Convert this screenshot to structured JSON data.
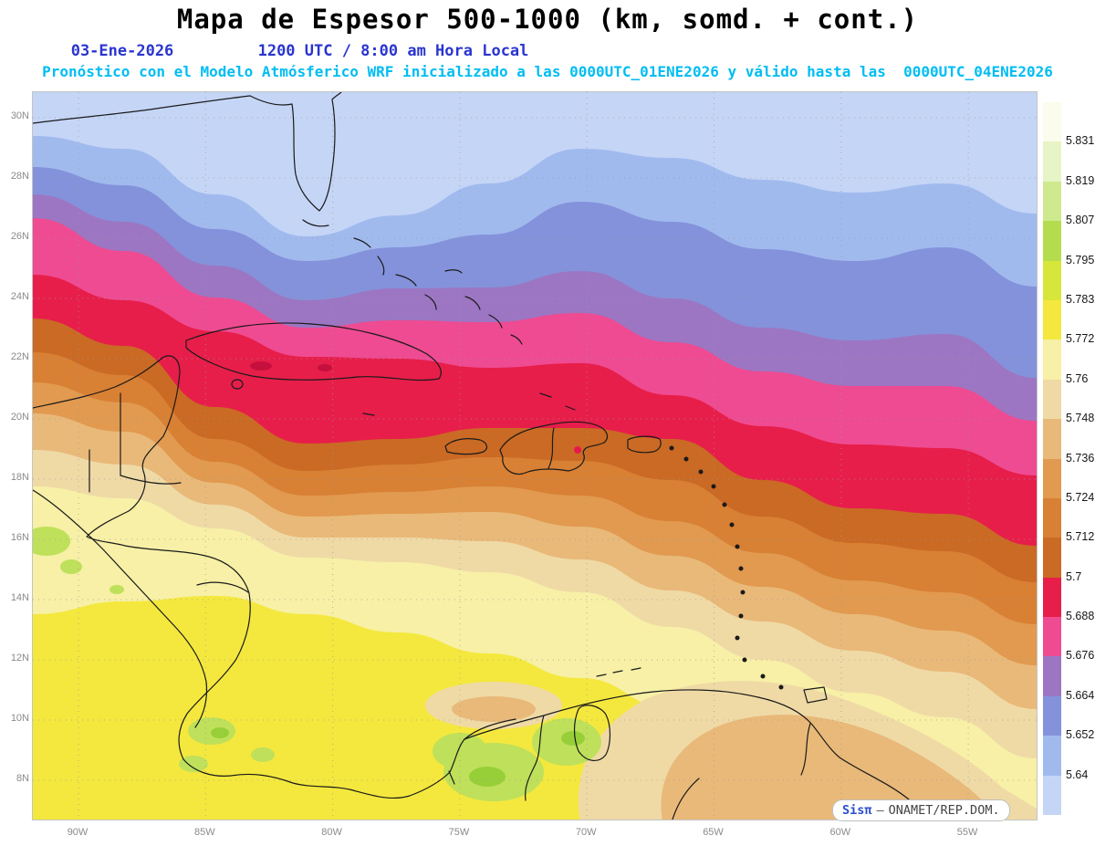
{
  "header": {
    "title": "Mapa de Espesor 500-1000 (km, somd. + cont.)",
    "date": "03-Ene-2026",
    "time": "1200 UTC / 8:00 am Hora Local",
    "forecast": "Pronóstico con el Modelo Atmósferico WRF inicializado a las 0000UTC_01ENE2026 y válido hasta las  0000UTC_04ENE2026"
  },
  "axes": {
    "lat_labels": [
      "30N",
      "28N",
      "26N",
      "24N",
      "22N",
      "20N",
      "18N",
      "16N",
      "14N",
      "12N",
      "10N",
      "8N"
    ],
    "lon_labels": [
      "90W",
      "85W",
      "80W",
      "75W",
      "70W",
      "65W",
      "60W",
      "55W"
    ]
  },
  "colorbar": {
    "labels": [
      "5.831",
      "5.819",
      "5.807",
      "5.795",
      "5.783",
      "5.772",
      "5.76",
      "5.748",
      "5.736",
      "5.724",
      "5.712",
      "5.7",
      "5.688",
      "5.676",
      "5.664",
      "5.652",
      "5.64"
    ],
    "colors": [
      "#fcfcec",
      "#e7f4c5",
      "#cfe98e",
      "#b4dd4e",
      "#d7e63a",
      "#f4e83e",
      "#f7f0a6",
      "#efdaa6",
      "#e9b979",
      "#e19a4f",
      "#d88034",
      "#ca6a24",
      "#e71e4a",
      "#ee4b92",
      "#9c76c3",
      "#8492db",
      "#a1baee",
      "#c5d5f6"
    ]
  },
  "colors": {
    "title_text": "#000000",
    "datetime_text": "#2a35cf",
    "forecast_text": "#00bdf2",
    "axis_text": "#8a8a8a",
    "coastline": "#1a1a1a",
    "grid": "#9a9a9a",
    "green_light": "#bfe05a",
    "green_deep": "#97cf38",
    "spot_red": "#e7194a",
    "spot_dark_red": "#c50f3c",
    "wheat": "#efdaa6",
    "sandy": "#e9b979"
  },
  "watermark": {
    "brand": "Sisπ",
    "separator": "—",
    "org": "ONAMET/REP.DOM."
  }
}
